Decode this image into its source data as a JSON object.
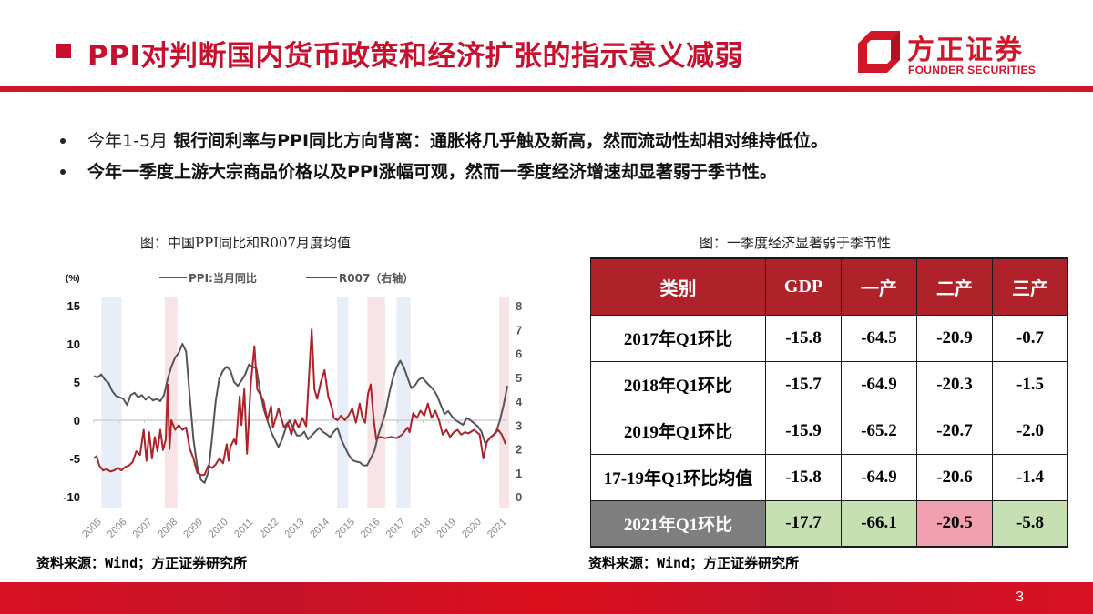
{
  "header": {
    "title": "PPI对判断国内货币政策和经济扩张的指示意义减弱",
    "logo_cn": "方正证券",
    "logo_en": "FOUNDER SECURITIES",
    "brand_color": "#d1162a"
  },
  "bullets": [
    {
      "lead": "今年1-5月",
      "body": "银行间利率与PPI同比方向背离：通胀将几乎触及新高，然而流动性却相对维持低位。"
    },
    {
      "lead": "",
      "body": "今年一季度上游大宗商品价格以及PPI涨幅可观，然而一季度经济增速却显著弱于季节性。"
    }
  ],
  "chart": {
    "title": "图：中国PPI同比和R007月度均值",
    "source": "资料来源：Wind；方正证券研究所"
  },
  "chart_data": {
    "type": "line",
    "title": "图：中国PPI同比和R007月度均值",
    "left_unit": "(%)",
    "legend": [
      {
        "name": "PPI:当月同比",
        "color": "#555555",
        "axis": "left"
      },
      {
        "name": "R007（右轴）",
        "color": "#b0222a",
        "axis": "right"
      }
    ],
    "x_ticks": [
      "2005",
      "2006",
      "2007",
      "2008",
      "2009",
      "2010",
      "2011",
      "2012",
      "2013",
      "2014",
      "2015",
      "2016",
      "2017",
      "2018",
      "2019",
      "2020",
      "2021"
    ],
    "left_axis": {
      "ticks": [
        15,
        10,
        5,
        0,
        -5,
        -10
      ],
      "ylim": [
        -10,
        15
      ]
    },
    "right_axis": {
      "ticks": [
        8,
        7,
        6,
        5,
        4,
        3,
        2,
        1,
        0
      ],
      "ylim": [
        0,
        8
      ]
    },
    "shaded_periods": [
      {
        "start": 2005.3,
        "end": 2006.1,
        "color": "#e8eef8"
      },
      {
        "start": 2007.8,
        "end": 2008.3,
        "color": "#f8e4e6"
      },
      {
        "start": 2014.6,
        "end": 2015.05,
        "color": "#e8eef8"
      },
      {
        "start": 2015.8,
        "end": 2016.5,
        "color": "#f8e4e6"
      },
      {
        "start": 2016.95,
        "end": 2017.5,
        "color": "#e8eef8"
      },
      {
        "start": 2021.0,
        "end": 2021.4,
        "color": "#f8e4e6"
      }
    ],
    "series": [
      {
        "name": "PPI:当月同比",
        "axis": "left",
        "points": [
          [
            2005.0,
            5.8
          ],
          [
            2005.2,
            5.6
          ],
          [
            2005.4,
            6.0
          ],
          [
            2005.6,
            5.3
          ],
          [
            2005.8,
            4.9
          ],
          [
            2006.0,
            3.8
          ],
          [
            2006.2,
            3.2
          ],
          [
            2006.4,
            3.0
          ],
          [
            2006.6,
            2.8
          ],
          [
            2006.8,
            2.0
          ],
          [
            2007.0,
            3.3
          ],
          [
            2007.2,
            3.6
          ],
          [
            2007.4,
            3.0
          ],
          [
            2007.6,
            3.3
          ],
          [
            2007.8,
            2.7
          ],
          [
            2008.0,
            3.1
          ],
          [
            2008.2,
            2.6
          ],
          [
            2008.4,
            2.8
          ],
          [
            2008.6,
            2.5
          ],
          [
            2008.8,
            3.3
          ],
          [
            2009.0,
            5.4
          ],
          [
            2009.2,
            7.0
          ],
          [
            2009.4,
            8.2
          ],
          [
            2009.6,
            8.8
          ],
          [
            2009.8,
            10.0
          ],
          [
            2010.0,
            9.0
          ],
          [
            2010.2,
            3.0
          ],
          [
            2010.4,
            -2.5
          ],
          [
            2010.6,
            -6.0
          ],
          [
            2010.8,
            -7.8
          ],
          [
            2011.0,
            -8.2
          ],
          [
            2011.2,
            -6.8
          ],
          [
            2011.4,
            -2.5
          ],
          [
            2011.6,
            2.5
          ],
          [
            2011.8,
            5.5
          ],
          [
            2012.0,
            6.5
          ],
          [
            2012.2,
            7.0
          ],
          [
            2012.4,
            6.5
          ],
          [
            2012.6,
            5.0
          ],
          [
            2012.8,
            4.5
          ],
          [
            2013.0,
            5.2
          ],
          [
            2013.2,
            6.0
          ],
          [
            2013.4,
            7.3
          ],
          [
            2013.6,
            7.0
          ],
          [
            2013.8,
            6.8
          ],
          [
            2014.0,
            4.0
          ],
          [
            2014.2,
            1.5
          ],
          [
            2014.4,
            0.0
          ],
          [
            2014.6,
            -1.5
          ],
          [
            2014.8,
            -2.5
          ],
          [
            2015.0,
            -3.5
          ],
          [
            2015.2,
            -2.5
          ],
          [
            2015.4,
            -1.0
          ],
          [
            2015.6,
            0.0
          ],
          [
            2015.8,
            -1.0
          ],
          [
            2016.0,
            -2.0
          ],
          [
            2016.2,
            -2.0
          ],
          [
            2016.4,
            -1.5
          ],
          [
            2016.6,
            -2.5
          ],
          [
            2016.8,
            -2.0
          ],
          [
            2017.0,
            -1.5
          ],
          [
            2017.2,
            -1.0
          ],
          [
            2017.4,
            -1.5
          ],
          [
            2017.6,
            -1.8
          ],
          [
            2017.8,
            -2.2
          ],
          [
            2018.0,
            -1.5
          ],
          [
            2018.2,
            -1.0
          ],
          [
            2018.4,
            -2.5
          ],
          [
            2018.6,
            -3.5
          ],
          [
            2018.8,
            -4.5
          ],
          [
            2019.0,
            -5.2
          ],
          [
            2019.2,
            -5.4
          ],
          [
            2019.4,
            -5.5
          ],
          [
            2019.6,
            -5.9
          ],
          [
            2019.8,
            -5.9
          ],
          [
            2020.0,
            -5.0
          ],
          [
            2020.2,
            -4.0
          ],
          [
            2020.4,
            -2.0
          ],
          [
            2020.6,
            -0.5
          ],
          [
            2020.8,
            1.0
          ],
          [
            2021.0,
            3.5
          ],
          [
            2021.2,
            5.5
          ],
          [
            2021.4,
            6.9
          ],
          [
            2021.6,
            7.8
          ],
          [
            2021.8,
            6.9
          ],
          [
            2022.0,
            5.5
          ],
          [
            2022.2,
            4.2
          ],
          [
            2022.4,
            4.6
          ],
          [
            2022.6,
            5.3
          ],
          [
            2022.8,
            5.6
          ],
          [
            2023.0,
            5.0
          ],
          [
            2023.2,
            4.5
          ],
          [
            2023.4,
            4.0
          ],
          [
            2023.6,
            3.2
          ],
          [
            2023.8,
            2.0
          ],
          [
            2024.0,
            0.8
          ],
          [
            2024.2,
            1.2
          ],
          [
            2024.4,
            0.5
          ],
          [
            2024.6,
            0.0
          ],
          [
            2024.8,
            -0.3
          ],
          [
            2025.0,
            -0.6
          ],
          [
            2025.2,
            0.3
          ],
          [
            2025.4,
            0.0
          ],
          [
            2025.6,
            -0.4
          ],
          [
            2025.8,
            -0.8
          ],
          [
            2026.0,
            -1.5
          ],
          [
            2026.2,
            -3.0
          ],
          [
            2026.4,
            -2.5
          ],
          [
            2026.6,
            -2.0
          ],
          [
            2026.8,
            -1.5
          ],
          [
            2027.0,
            0.0
          ],
          [
            2027.2,
            2.0
          ],
          [
            2027.4,
            4.5
          ]
        ]
      },
      {
        "name": "R007（右轴）",
        "axis": "right",
        "points": [
          [
            2005.0,
            1.6
          ],
          [
            2005.15,
            1.7
          ],
          [
            2005.3,
            1.3
          ],
          [
            2005.5,
            1.1
          ],
          [
            2005.7,
            1.15
          ],
          [
            2005.9,
            1.05
          ],
          [
            2006.1,
            1.1
          ],
          [
            2006.3,
            1.2
          ],
          [
            2006.5,
            1.1
          ],
          [
            2006.7,
            1.25
          ],
          [
            2006.9,
            1.3
          ],
          [
            2007.1,
            1.45
          ],
          [
            2007.3,
            1.9
          ],
          [
            2007.5,
            1.75
          ],
          [
            2007.7,
            2.8
          ],
          [
            2007.85,
            1.5
          ],
          [
            2008.0,
            2.7
          ],
          [
            2008.15,
            1.6
          ],
          [
            2008.3,
            2.5
          ],
          [
            2008.45,
            1.9
          ],
          [
            2008.6,
            2.8
          ],
          [
            2008.75,
            1.95
          ],
          [
            2008.9,
            2.4
          ],
          [
            2009.0,
            4.7
          ],
          [
            2009.1,
            2.0
          ],
          [
            2009.2,
            3.2
          ],
          [
            2009.4,
            2.8
          ],
          [
            2009.6,
            3.0
          ],
          [
            2009.8,
            2.8
          ],
          [
            2010.0,
            2.9
          ],
          [
            2010.2,
            2.0
          ],
          [
            2010.4,
            1.6
          ],
          [
            2010.6,
            1.0
          ],
          [
            2010.8,
            0.9
          ],
          [
            2011.0,
            0.92
          ],
          [
            2011.2,
            1.3
          ],
          [
            2011.4,
            1.2
          ],
          [
            2011.6,
            1.35
          ],
          [
            2011.8,
            1.6
          ],
          [
            2012.0,
            1.4
          ],
          [
            2012.2,
            2.2
          ],
          [
            2012.3,
            1.5
          ],
          [
            2012.4,
            2.1
          ],
          [
            2012.6,
            2.4
          ],
          [
            2012.7,
            2.2
          ],
          [
            2012.9,
            4.2
          ],
          [
            2013.0,
            3.0
          ],
          [
            2013.15,
            4.5
          ],
          [
            2013.3,
            1.8
          ],
          [
            2013.5,
            4.7
          ],
          [
            2013.7,
            6.3
          ],
          [
            2013.85,
            4.5
          ],
          [
            2014.0,
            4.3
          ],
          [
            2014.2,
            4.0
          ],
          [
            2014.4,
            3.2
          ],
          [
            2014.6,
            3.8
          ],
          [
            2014.7,
            2.9
          ],
          [
            2014.9,
            3.4
          ],
          [
            2015.0,
            3.7
          ],
          [
            2015.3,
            2.9
          ],
          [
            2015.5,
            3.1
          ],
          [
            2015.7,
            2.6
          ],
          [
            2015.9,
            3.2
          ],
          [
            2016.1,
            2.9
          ],
          [
            2016.3,
            3.3
          ],
          [
            2016.5,
            2.95
          ],
          [
            2016.8,
            7.0
          ],
          [
            2016.95,
            4.5
          ],
          [
            2017.1,
            4.1
          ],
          [
            2017.3,
            4.8
          ],
          [
            2017.5,
            5.3
          ],
          [
            2017.7,
            4.2
          ],
          [
            2017.9,
            3.7
          ],
          [
            2018.0,
            3.3
          ],
          [
            2018.2,
            3.2
          ],
          [
            2018.4,
            3.4
          ],
          [
            2018.6,
            3.2
          ],
          [
            2018.8,
            3.4
          ],
          [
            2019.0,
            3.7
          ],
          [
            2019.2,
            3.1
          ],
          [
            2019.4,
            3.9
          ],
          [
            2019.55,
            3.3
          ],
          [
            2019.7,
            3.1
          ],
          [
            2019.85,
            4.3
          ],
          [
            2020.0,
            4.7
          ],
          [
            2020.15,
            3.3
          ],
          [
            2020.3,
            2.4
          ],
          [
            2020.5,
            2.5
          ],
          [
            2020.8,
            2.45
          ],
          [
            2021.1,
            2.5
          ],
          [
            2021.4,
            2.45
          ],
          [
            2021.7,
            2.6
          ],
          [
            2022.0,
            2.9
          ],
          [
            2022.1,
            2.7
          ],
          [
            2022.3,
            3.5
          ],
          [
            2022.5,
            3.3
          ],
          [
            2022.7,
            3.6
          ],
          [
            2022.9,
            3.4
          ],
          [
            2023.1,
            3.9
          ],
          [
            2023.3,
            3.3
          ],
          [
            2023.5,
            3.6
          ],
          [
            2023.7,
            3.2
          ],
          [
            2023.9,
            2.6
          ],
          [
            2024.1,
            2.8
          ],
          [
            2024.3,
            2.5
          ],
          [
            2024.5,
            2.7
          ],
          [
            2024.7,
            2.8
          ],
          [
            2024.9,
            2.6
          ],
          [
            2025.1,
            2.7
          ],
          [
            2025.3,
            2.65
          ],
          [
            2025.6,
            2.8
          ],
          [
            2025.9,
            2.6
          ],
          [
            2026.1,
            1.6
          ],
          [
            2026.3,
            2.3
          ],
          [
            2026.5,
            2.5
          ],
          [
            2026.7,
            2.6
          ],
          [
            2026.9,
            2.8
          ],
          [
            2027.1,
            2.6
          ],
          [
            2027.3,
            2.2
          ]
        ]
      }
    ]
  },
  "table": {
    "title": "图：一季度经济显著弱于季节性",
    "headers": [
      "类别",
      "GDP",
      "一产",
      "二产",
      "三产"
    ],
    "rows": [
      {
        "label": "2017年Q1环比",
        "values": [
          "-15.8",
          "-64.5",
          "-20.9",
          "-0.7"
        ]
      },
      {
        "label": "2018年Q1环比",
        "values": [
          "-15.7",
          "-64.9",
          "-20.3",
          "-1.5"
        ]
      },
      {
        "label": "2019年Q1环比",
        "values": [
          "-15.9",
          "-65.2",
          "-20.7",
          "-2.0"
        ]
      },
      {
        "label": "17-19年Q1环比均值",
        "values": [
          "-15.8",
          "-64.9",
          "-20.6",
          "-1.4"
        ]
      },
      {
        "label": "2021年Q1环比",
        "values": [
          "-17.7",
          "-66.1",
          "-20.5",
          "-5.8"
        ]
      }
    ],
    "source": "资料来源：Wind；方正证券研究所",
    "colors": {
      "header": "#b0222a",
      "highlight_label": "#7f7f7f",
      "weaker": "#c6e0b4",
      "stronger": "#f2a0b0"
    }
  },
  "footer": {
    "page_number": "3"
  }
}
